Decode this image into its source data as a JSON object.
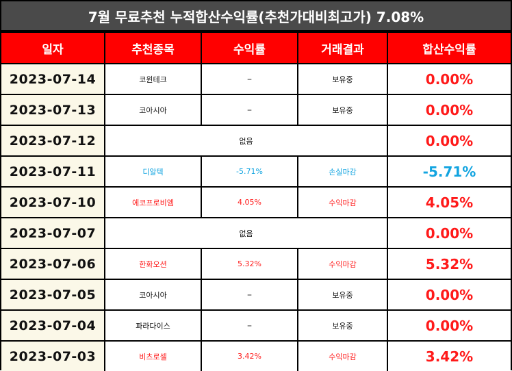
{
  "title": "7월 무료추천 누적합산수익률(추천가대비최고가) 7.08%",
  "headers": {
    "date": "일자",
    "stock": "추천종목",
    "return": "수익률",
    "result": "거래결과",
    "total": "합산수익률"
  },
  "colors": {
    "red": "#ff0000",
    "blue": "#12a4e0",
    "title_bg": "#4a4a4a",
    "date_bg": "#fbf8e8"
  },
  "rows": [
    {
      "date": "2023-07-14",
      "stock": "코윈테크",
      "return": "–",
      "result": "보유중",
      "total": "0.00%",
      "tone": "red"
    },
    {
      "date": "2023-07-13",
      "stock": "코아시아",
      "return": "–",
      "result": "보유중",
      "total": "0.00%",
      "tone": "red"
    },
    {
      "date": "2023-07-12",
      "none": "없음",
      "total": "0.00%",
      "tone": "red"
    },
    {
      "date": "2023-07-11",
      "stock": "디알텍",
      "return": "-5.71%",
      "result": "손실마감",
      "total": "-5.71%",
      "tone": "blue"
    },
    {
      "date": "2023-07-10",
      "stock": "에코프로비엠",
      "return": "4.05%",
      "result": "수익마감",
      "total": "4.05%",
      "tone": "red"
    },
    {
      "date": "2023-07-07",
      "none": "없음",
      "total": "0.00%",
      "tone": "red"
    },
    {
      "date": "2023-07-06",
      "stock": "한화오션",
      "return": "5.32%",
      "result": "수익마감",
      "total": "5.32%",
      "tone": "red"
    },
    {
      "date": "2023-07-05",
      "stock": "코아시아",
      "return": "–",
      "result": "보유중",
      "total": "0.00%",
      "tone": "red"
    },
    {
      "date": "2023-07-04",
      "stock": "파라다이스",
      "return": "–",
      "result": "보유중",
      "total": "0.00%",
      "tone": "red"
    },
    {
      "date": "2023-07-03",
      "stock": "비츠로셀",
      "return": "3.42%",
      "result": "수익마감",
      "total": "3.42%",
      "tone": "red"
    }
  ]
}
